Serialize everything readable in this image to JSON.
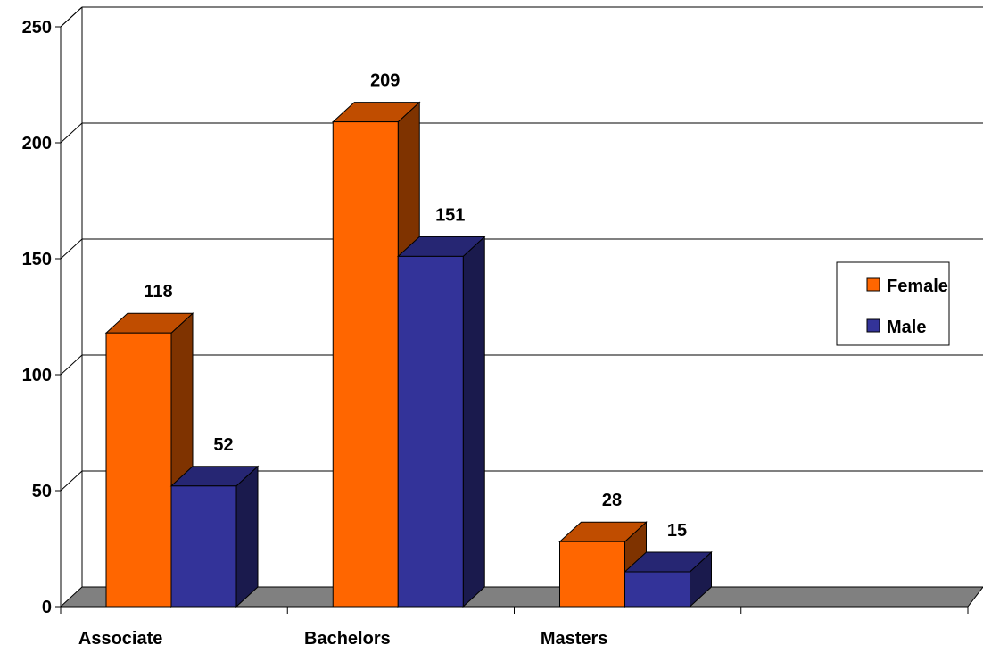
{
  "chart_data": {
    "type": "bar",
    "title": "",
    "xlabel": "",
    "ylabel": "",
    "categories": [
      "Associate",
      "Bachelors",
      "Masters",
      ""
    ],
    "series": [
      {
        "name": "Female",
        "values": [
          118,
          209,
          28,
          null
        ],
        "color": "#FF6600",
        "side_color": "#7F3300",
        "top_color": "#C04D00"
      },
      {
        "name": "Male",
        "values": [
          52,
          151,
          15,
          null
        ],
        "color": "#333399",
        "side_color": "#1A1A4D",
        "top_color": "#262673"
      }
    ],
    "ylim": [
      0,
      250
    ],
    "yticks": [
      0,
      50,
      100,
      150,
      200,
      250
    ],
    "grid": true,
    "legend_position": "right",
    "floor_color": "#808080"
  }
}
